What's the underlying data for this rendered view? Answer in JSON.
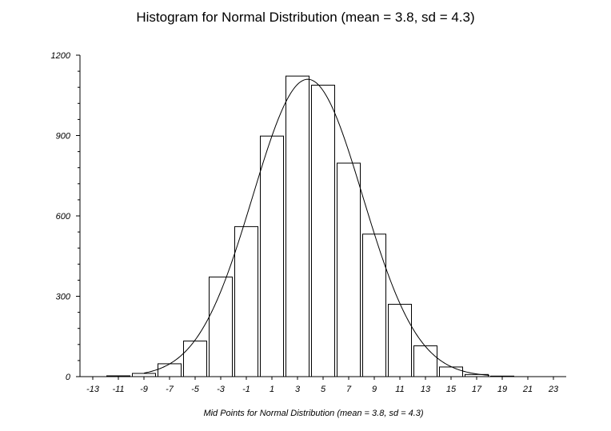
{
  "chart_data": {
    "type": "bar",
    "title": "Histogram for Normal Distribution (mean = 3.8, sd = 4.3)",
    "xlabel": "Mid Points for Normal Distribution (mean = 3.8, sd = 4.3)",
    "ylabel": "",
    "ylim": [
      0,
      1200
    ],
    "yticks": [
      0,
      300,
      600,
      900,
      1200
    ],
    "xlim": [
      -14,
      24
    ],
    "xticks": [
      -13,
      -11,
      -9,
      -7,
      -5,
      -3,
      -1,
      1,
      3,
      5,
      7,
      9,
      11,
      13,
      15,
      17,
      19,
      21,
      23
    ],
    "bin_width": 2,
    "categories": [
      -11,
      -9,
      -7,
      -5,
      -3,
      -1,
      1,
      3,
      5,
      7,
      9,
      11,
      13,
      15,
      17,
      19
    ],
    "values": [
      3,
      12,
      48,
      133,
      372,
      560,
      898,
      1122,
      1088,
      797,
      532,
      270,
      115,
      36,
      8,
      2
    ],
    "curve": {
      "type": "normal",
      "mean": 3.8,
      "sd": 4.3,
      "peak": 1110
    },
    "grid": false,
    "legend": "none"
  }
}
